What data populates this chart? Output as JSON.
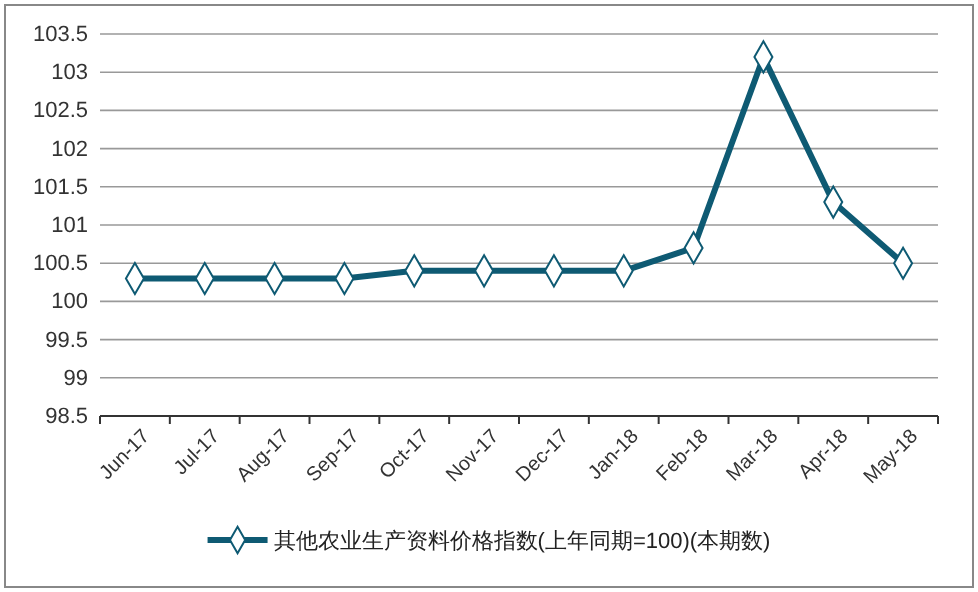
{
  "chart_data": {
    "type": "line",
    "categories": [
      "Jun-17",
      "Jul-17",
      "Aug-17",
      "Sep-17",
      "Oct-17",
      "Nov-17",
      "Dec-17",
      "Jan-18",
      "Feb-18",
      "Mar-18",
      "Apr-18",
      "May-18"
    ],
    "series": [
      {
        "name": "其他农业生产资料价格指数(上年同期=100)(本期数)",
        "color": "#0e5a73",
        "values": [
          100.3,
          100.3,
          100.3,
          100.3,
          100.4,
          100.4,
          100.4,
          100.4,
          100.7,
          103.2,
          101.3,
          100.5
        ]
      }
    ],
    "ylim": [
      98.5,
      103.5
    ],
    "yticks": [
      98.5,
      99,
      99.5,
      100,
      100.5,
      101,
      101.5,
      102,
      102.5,
      103,
      103.5
    ],
    "grid": "y",
    "legend": "bottom",
    "marker": "diamond",
    "line_style": "solid"
  }
}
